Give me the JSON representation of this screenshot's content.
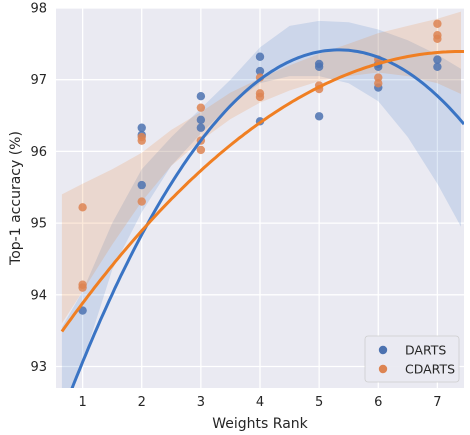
{
  "chart_data": {
    "type": "scatter",
    "title": "",
    "xlabel": "Weights Rank",
    "ylabel": "Top-1 accuracy (%)",
    "xlim": [
      0.55,
      7.45
    ],
    "ylim": [
      92.7,
      98.0
    ],
    "xticks": [
      1,
      2,
      3,
      4,
      5,
      6,
      7
    ],
    "yticks": [
      93,
      94,
      95,
      96,
      97,
      98
    ],
    "grid": true,
    "background": "#eaeaf2",
    "legend_position": "bottom-right",
    "series": [
      {
        "name": "DARTS",
        "color": "#4c72b0",
        "line_color": "#3a74c4",
        "points": [
          [
            1,
            93.78
          ],
          [
            2,
            96.33
          ],
          [
            2,
            96.23
          ],
          [
            2,
            95.53
          ],
          [
            3,
            96.77
          ],
          [
            3,
            96.44
          ],
          [
            3,
            96.33
          ],
          [
            4,
            97.32
          ],
          [
            4,
            97.12
          ],
          [
            4,
            96.42
          ],
          [
            5,
            97.22
          ],
          [
            5,
            97.18
          ],
          [
            5,
            96.49
          ],
          [
            6,
            97.22
          ],
          [
            6,
            97.18
          ],
          [
            6,
            96.89
          ],
          [
            7,
            97.28
          ],
          [
            7,
            97.18
          ]
        ],
        "fit": {
          "degree": 2,
          "coefficients": [
            -0.2316,
            2.4714,
            90.8226
          ],
          "band": [
            [
              0.65,
              92.25,
              93.55
            ],
            [
              1.0,
              93.05,
              94.05
            ],
            [
              1.5,
              94.35,
              95.0
            ],
            [
              2.0,
              95.15,
              95.75
            ],
            [
              2.5,
              95.8,
              96.2
            ],
            [
              3.0,
              96.25,
              96.6
            ],
            [
              3.5,
              96.65,
              97.0
            ],
            [
              4.0,
              96.95,
              97.45
            ],
            [
              4.5,
              97.05,
              97.75
            ],
            [
              5.0,
              97.05,
              97.82
            ],
            [
              5.5,
              96.95,
              97.8
            ],
            [
              6.0,
              96.7,
              97.7
            ],
            [
              6.5,
              96.2,
              97.55
            ],
            [
              7.0,
              95.55,
              97.35
            ],
            [
              7.4,
              94.95,
              97.15
            ]
          ]
        }
      },
      {
        "name": "CDARTS",
        "color": "#dd8452",
        "line_color": "#f07f23",
        "points": [
          [
            1,
            95.22
          ],
          [
            1,
            94.14
          ],
          [
            1,
            94.1
          ],
          [
            2,
            96.2
          ],
          [
            2,
            96.15
          ],
          [
            2,
            95.3
          ],
          [
            3,
            96.61
          ],
          [
            3,
            96.15
          ],
          [
            3,
            96.02
          ],
          [
            4,
            97.03
          ],
          [
            4,
            96.81
          ],
          [
            4,
            96.76
          ],
          [
            5,
            96.92
          ],
          [
            5,
            96.87
          ],
          [
            6,
            97.28
          ],
          [
            6,
            97.03
          ],
          [
            6,
            96.95
          ],
          [
            7,
            97.78
          ],
          [
            7,
            97.62
          ],
          [
            7,
            97.57
          ]
        ],
        "fit": {
          "degree": 2,
          "coefficients": [
            -0.0855,
            1.2668,
            92.7014
          ],
          "band": [
            [
              0.65,
              93.6,
              95.4
            ],
            [
              1.0,
              94.05,
              95.55
            ],
            [
              1.5,
              94.7,
              95.75
            ],
            [
              2.0,
              95.3,
              95.98
            ],
            [
              2.5,
              95.8,
              96.3
            ],
            [
              3.0,
              96.15,
              96.55
            ],
            [
              3.5,
              96.45,
              96.82
            ],
            [
              4.0,
              96.68,
              97.02
            ],
            [
              4.5,
              96.85,
              97.2
            ],
            [
              5.0,
              96.98,
              97.36
            ],
            [
              5.5,
              97.05,
              97.5
            ],
            [
              6.0,
              97.1,
              97.65
            ],
            [
              6.5,
              97.05,
              97.75
            ],
            [
              7.0,
              96.95,
              97.85
            ],
            [
              7.4,
              96.8,
              97.95
            ]
          ]
        }
      }
    ]
  }
}
